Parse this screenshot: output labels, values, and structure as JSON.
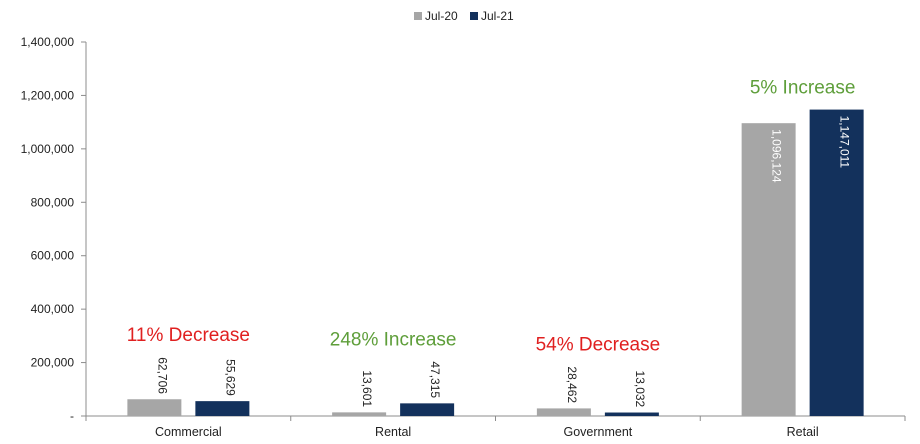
{
  "chart_data": {
    "type": "bar",
    "categories": [
      "Commercial",
      "Rental",
      "Government",
      "Retail"
    ],
    "series": [
      {
        "name": "Jul-20",
        "values": [
          62706,
          13601,
          28462,
          1096124
        ],
        "labels": [
          "62,706",
          "13,601",
          "28,462",
          "1,096,124"
        ]
      },
      {
        "name": "Jul-21",
        "values": [
          55629,
          47315,
          13032,
          1147011
        ],
        "labels": [
          "55,629",
          "47,315",
          "13,032",
          "1,147,011"
        ]
      }
    ],
    "ylim": [
      0,
      1400000
    ],
    "yticks": [
      0,
      200000,
      400000,
      600000,
      800000,
      1000000,
      1200000,
      1400000
    ],
    "ytick_labels": [
      "-",
      "200,000",
      "400,000",
      "600,000",
      "800,000",
      "1,000,000",
      "1,200,000",
      "1,400,000"
    ],
    "annotations": [
      {
        "category": "Commercial",
        "text": "11% Decrease",
        "color": "#e02020"
      },
      {
        "category": "Rental",
        "text": "248% Increase",
        "color": "#5e9e3a"
      },
      {
        "category": "Government",
        "text": "54% Decrease",
        "color": "#e02020"
      },
      {
        "category": "Retail",
        "text": "5% Increase",
        "color": "#5e9e3a"
      }
    ],
    "colors": {
      "Jul-20": "#a6a6a6",
      "Jul-21": "#13315c"
    },
    "legend_position": "top",
    "grid": false,
    "title": "",
    "xlabel": "",
    "ylabel": ""
  }
}
